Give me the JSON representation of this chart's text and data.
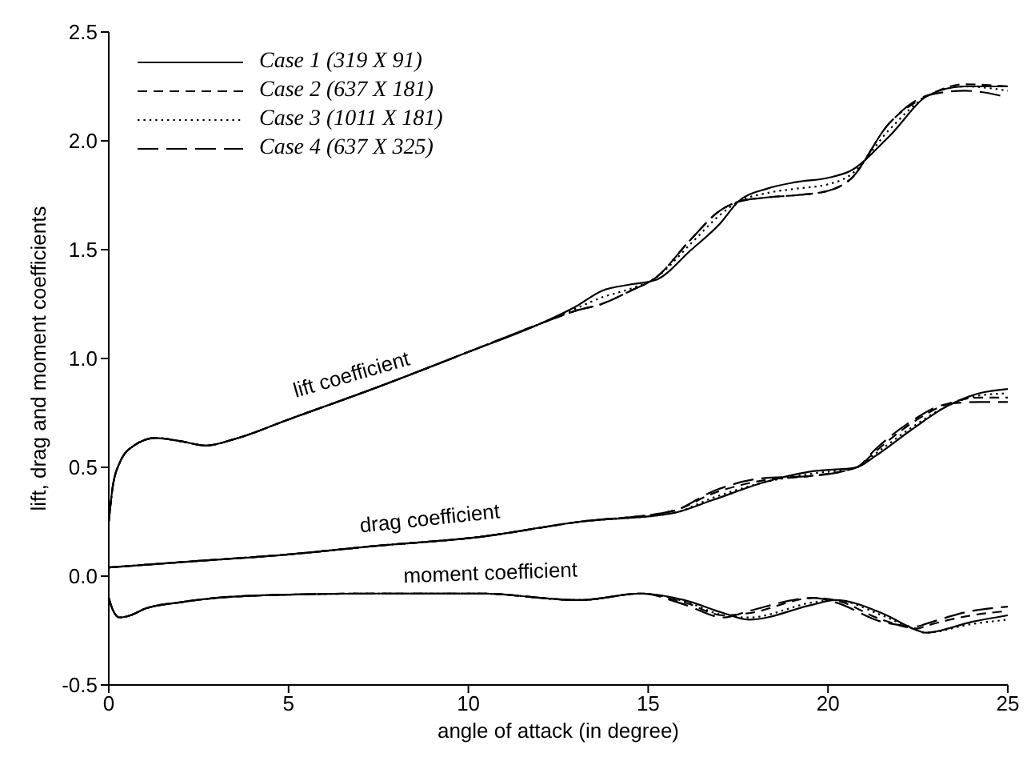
{
  "chart_data": {
    "type": "line",
    "xlabel": "angle of attack (in degree)",
    "ylabel": "lift, drag and moment coefficients",
    "xlim": [
      0,
      25
    ],
    "xticks": [
      0,
      5,
      10,
      15,
      20,
      25
    ],
    "ylim": [
      -0.5,
      2.5
    ],
    "yticks": [
      {
        "value": -0.5,
        "label": "-0.5"
      },
      {
        "value": 0,
        "label": "0.0"
      },
      {
        "value": 0.5,
        "label": "0.5"
      },
      {
        "value": 1,
        "label": "1.0"
      },
      {
        "value": 1.5,
        "label": "1.5"
      },
      {
        "value": 2,
        "label": "2.0"
      },
      {
        "value": 2.5,
        "label": "2.5"
      }
    ],
    "grid": false,
    "legend": "top left",
    "marker": "none",
    "annotations": [
      "lift coefficient",
      "drag coefficient",
      "moment coefficient"
    ],
    "series": [
      {
        "name": "Case 1 (319 X 91)",
        "color": "#000000",
        "line_style": "solid",
        "x": [
          0,
          0.1,
          0.3,
          0.7,
          1.3,
          2,
          2.7,
          3.5,
          5,
          7.5,
          10,
          12,
          13,
          13.7,
          14.5,
          15.2,
          16.2,
          17,
          17.5,
          18.3,
          19.1,
          20,
          20.6,
          21.7,
          22.8,
          23.8,
          25
        ],
        "values": [
          0.25,
          0.4,
          0.52,
          0.6,
          0.635,
          0.62,
          0.6,
          0.63,
          0.72,
          0.87,
          1.03,
          1.16,
          1.24,
          1.31,
          1.34,
          1.36,
          1.5,
          1.62,
          1.72,
          1.78,
          1.81,
          1.83,
          1.86,
          2.02,
          2.21,
          2.25,
          2.25
        ]
      },
      {
        "color": "#000000",
        "line_style": "solid",
        "x": [
          0,
          2.5,
          5,
          7.5,
          10.3,
          13.1,
          15.7,
          16.8,
          18.2,
          19.5,
          20.8,
          21.3,
          22.3,
          23.3,
          24.2,
          25
        ],
        "values": [
          0.04,
          0.07,
          0.1,
          0.14,
          0.18,
          0.25,
          0.29,
          0.35,
          0.43,
          0.48,
          0.5,
          0.55,
          0.67,
          0.78,
          0.84,
          0.86
        ]
      },
      {
        "color": "#000000",
        "line_style": "solid",
        "x": [
          0,
          0.1,
          0.3,
          0.6,
          1,
          2,
          3,
          5,
          7.5,
          10.3,
          13.1,
          14.8,
          16,
          17.1,
          17.8,
          19.6,
          20.2,
          21.5,
          22.5,
          22.7,
          24,
          25
        ],
        "values": [
          -0.1,
          -0.15,
          -0.19,
          -0.18,
          -0.15,
          -0.12,
          -0.1,
          -0.085,
          -0.08,
          -0.08,
          -0.11,
          -0.08,
          -0.11,
          -0.17,
          -0.2,
          -0.13,
          -0.11,
          -0.17,
          -0.25,
          -0.26,
          -0.21,
          -0.18
        ]
      },
      {
        "name": "Case 2 (637 X 181)",
        "color": "#000000",
        "line_style": "dashed",
        "x": [
          0,
          0.1,
          0.3,
          0.7,
          1.3,
          2,
          2.7,
          3.5,
          5,
          7.5,
          10,
          12,
          13,
          13.7,
          14.5,
          15.2,
          16.2,
          17,
          17.5,
          18.3,
          19.1,
          20,
          20.6,
          21.7,
          22.8,
          23.8,
          25
        ],
        "values": [
          0.25,
          0.4,
          0.52,
          0.6,
          0.635,
          0.62,
          0.6,
          0.63,
          0.72,
          0.87,
          1.03,
          1.16,
          1.22,
          1.25,
          1.31,
          1.37,
          1.55,
          1.68,
          1.72,
          1.74,
          1.75,
          1.77,
          1.82,
          2.08,
          2.21,
          2.26,
          2.25
        ]
      },
      {
        "color": "#000000",
        "line_style": "dashed",
        "x": [
          0,
          2.5,
          5,
          7.5,
          10.3,
          13.1,
          15.7,
          16.8,
          18.2,
          19.5,
          20.8,
          21.3,
          22.3,
          23.3,
          24.2,
          25
        ],
        "values": [
          0.04,
          0.07,
          0.1,
          0.14,
          0.18,
          0.25,
          0.3,
          0.38,
          0.44,
          0.46,
          0.5,
          0.57,
          0.7,
          0.79,
          0.82,
          0.82
        ]
      },
      {
        "color": "#000000",
        "line_style": "dashed",
        "x": [
          0,
          0.1,
          0.3,
          0.6,
          1,
          2,
          3,
          5,
          7.5,
          10.3,
          13.1,
          14.8,
          16,
          17.1,
          17.8,
          19.6,
          20.2,
          21.5,
          22.5,
          22.7,
          24,
          25
        ],
        "values": [
          -0.1,
          -0.15,
          -0.19,
          -0.18,
          -0.15,
          -0.12,
          -0.1,
          -0.085,
          -0.08,
          -0.08,
          -0.11,
          -0.08,
          -0.12,
          -0.18,
          -0.17,
          -0.1,
          -0.11,
          -0.2,
          -0.24,
          -0.23,
          -0.18,
          -0.16
        ]
      },
      {
        "name": "Case 3 (1011 X 181)",
        "color": "#000000",
        "line_style": "dotted",
        "x": [
          0,
          0.1,
          0.3,
          0.7,
          1.3,
          2,
          2.7,
          3.5,
          5,
          7.5,
          10,
          12,
          13,
          13.7,
          14.5,
          15.2,
          16.2,
          17,
          17.5,
          18.3,
          19.1,
          20,
          20.6,
          21.7,
          22.8,
          23.8,
          25
        ],
        "values": [
          0.25,
          0.4,
          0.52,
          0.6,
          0.635,
          0.62,
          0.6,
          0.63,
          0.72,
          0.87,
          1.03,
          1.16,
          1.23,
          1.28,
          1.32,
          1.37,
          1.53,
          1.66,
          1.72,
          1.76,
          1.78,
          1.8,
          1.84,
          2.05,
          2.21,
          2.25,
          2.23
        ]
      },
      {
        "color": "#000000",
        "line_style": "dotted",
        "x": [
          0,
          2.5,
          5,
          7.5,
          10.3,
          13.1,
          15.7,
          16.8,
          18.2,
          19.5,
          20.8,
          21.3,
          22.3,
          23.3,
          24.2,
          25
        ],
        "values": [
          0.04,
          0.07,
          0.1,
          0.14,
          0.18,
          0.25,
          0.29,
          0.36,
          0.43,
          0.47,
          0.5,
          0.56,
          0.68,
          0.78,
          0.83,
          0.84
        ]
      },
      {
        "color": "#000000",
        "line_style": "dotted",
        "x": [
          0,
          0.1,
          0.3,
          0.6,
          1,
          2,
          3,
          5,
          7.5,
          10.3,
          13.1,
          14.8,
          16,
          17.1,
          17.8,
          19.6,
          20.2,
          21.5,
          22.5,
          22.7,
          24,
          25
        ],
        "values": [
          -0.1,
          -0.15,
          -0.19,
          -0.18,
          -0.15,
          -0.12,
          -0.1,
          -0.085,
          -0.08,
          -0.08,
          -0.11,
          -0.08,
          -0.115,
          -0.18,
          -0.19,
          -0.12,
          -0.11,
          -0.18,
          -0.25,
          -0.26,
          -0.22,
          -0.2
        ]
      },
      {
        "name": "Case 4 (637 X 325)",
        "color": "#000000",
        "line_style": "dashed",
        "x": [
          0,
          0.1,
          0.3,
          0.7,
          1.3,
          2,
          2.7,
          3.5,
          5,
          7.5,
          10,
          12,
          13,
          13.7,
          14.5,
          15.2,
          16.2,
          17,
          17.5,
          18.3,
          19.1,
          20,
          20.6,
          21.7,
          22.8,
          23.8,
          25
        ],
        "values": [
          0.25,
          0.4,
          0.52,
          0.6,
          0.635,
          0.62,
          0.6,
          0.63,
          0.72,
          0.87,
          1.03,
          1.16,
          1.22,
          1.25,
          1.31,
          1.37,
          1.55,
          1.68,
          1.72,
          1.74,
          1.75,
          1.77,
          1.82,
          2.08,
          2.21,
          2.23,
          2.2
        ]
      },
      {
        "color": "#000000",
        "line_style": "dashed",
        "x": [
          0,
          2.5,
          5,
          7.5,
          10.3,
          13.1,
          15.7,
          16.8,
          18.2,
          19.5,
          20.8,
          21.3,
          22.3,
          23.3,
          24.2,
          25
        ],
        "values": [
          0.04,
          0.07,
          0.1,
          0.14,
          0.18,
          0.25,
          0.3,
          0.39,
          0.45,
          0.46,
          0.5,
          0.58,
          0.71,
          0.79,
          0.8,
          0.8
        ]
      },
      {
        "color": "#000000",
        "line_style": "dashed",
        "x": [
          0,
          0.1,
          0.3,
          0.6,
          1,
          2,
          3,
          5,
          7.5,
          10.3,
          13.1,
          14.8,
          16,
          17.1,
          17.8,
          19.6,
          20.2,
          21.5,
          22.5,
          22.7,
          24,
          25
        ],
        "values": [
          -0.1,
          -0.15,
          -0.19,
          -0.18,
          -0.15,
          -0.12,
          -0.1,
          -0.085,
          -0.08,
          -0.08,
          -0.11,
          -0.08,
          -0.13,
          -0.19,
          -0.16,
          -0.1,
          -0.12,
          -0.21,
          -0.23,
          -0.22,
          -0.16,
          -0.14
        ]
      }
    ]
  }
}
